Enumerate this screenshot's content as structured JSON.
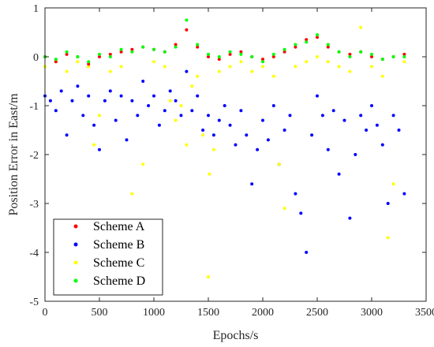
{
  "chart_data": {
    "type": "scatter",
    "xlabel": "Epochs/s",
    "ylabel": "Position Error in East/m",
    "xlim": [
      0,
      3500
    ],
    "ylim": [
      -5,
      1
    ],
    "xticks": [
      0,
      500,
      1000,
      1500,
      2000,
      2500,
      3000,
      3500
    ],
    "yticks": [
      -5,
      -4,
      -3,
      -2,
      -1,
      0,
      1
    ],
    "grid": false,
    "legend_position": "bottom-left",
    "series_colors": [
      "#ff0000",
      "#0000ff",
      "#ffff00",
      "#00ff00"
    ],
    "series": [
      {
        "name": "Scheme A",
        "x": [
          0,
          100,
          200,
          300,
          400,
          500,
          600,
          700,
          800,
          900,
          1000,
          1100,
          1200,
          1300,
          1400,
          1500,
          1600,
          1700,
          1800,
          1900,
          2000,
          2100,
          2200,
          2300,
          2400,
          2500,
          2600,
          2700,
          2800,
          2900,
          3000,
          3100,
          3200,
          3300
        ],
        "y": [
          0.0,
          -0.1,
          0.05,
          0.0,
          -0.15,
          0.0,
          0.05,
          0.1,
          0.15,
          0.2,
          0.15,
          0.1,
          0.25,
          0.55,
          0.2,
          0.0,
          -0.05,
          0.05,
          0.1,
          0.0,
          -0.05,
          0.0,
          0.1,
          0.2,
          0.35,
          0.4,
          0.2,
          0.1,
          0.05,
          0.1,
          0.0,
          -0.05,
          0.0,
          0.05
        ]
      },
      {
        "name": "Scheme B",
        "x": [
          0,
          50,
          100,
          150,
          200,
          250,
          300,
          350,
          400,
          450,
          500,
          550,
          600,
          650,
          700,
          750,
          800,
          850,
          900,
          950,
          1000,
          1050,
          1100,
          1150,
          1200,
          1250,
          1300,
          1350,
          1400,
          1450,
          1500,
          1550,
          1600,
          1650,
          1700,
          1750,
          1800,
          1850,
          1900,
          1950,
          2000,
          2050,
          2100,
          2150,
          2200,
          2250,
          2300,
          2350,
          2400,
          2450,
          2500,
          2550,
          2600,
          2650,
          2700,
          2750,
          2800,
          2850,
          2900,
          2950,
          3000,
          3050,
          3100,
          3150,
          3200,
          3250,
          3300
        ],
        "y": [
          -0.8,
          -0.9,
          -1.1,
          -0.7,
          -1.6,
          -0.9,
          -0.6,
          -1.2,
          -0.8,
          -1.4,
          -1.9,
          -0.9,
          -0.7,
          -1.3,
          -0.8,
          -1.7,
          -0.9,
          -1.2,
          -0.5,
          -1.0,
          -0.8,
          -1.4,
          -1.1,
          -0.7,
          -0.9,
          -1.2,
          -0.3,
          -1.1,
          -0.8,
          -1.5,
          -1.2,
          -1.6,
          -1.3,
          -1.0,
          -1.4,
          -1.8,
          -1.1,
          -1.6,
          -2.6,
          -1.9,
          -1.3,
          -1.7,
          -1.0,
          -2.2,
          -1.5,
          -1.2,
          -2.8,
          -3.2,
          -4.0,
          -1.6,
          -0.8,
          -1.2,
          -1.9,
          -1.1,
          -2.4,
          -1.3,
          -3.3,
          -2.0,
          -1.2,
          -1.5,
          -1.0,
          -1.4,
          -1.8,
          -3.0,
          -1.2,
          -1.5,
          -2.8
        ]
      },
      {
        "name": "Scheme C",
        "x": [
          0,
          100,
          200,
          300,
          400,
          450,
          500,
          600,
          700,
          800,
          900,
          1000,
          1100,
          1150,
          1200,
          1250,
          1300,
          1350,
          1400,
          1450,
          1500,
          1510,
          1550,
          1600,
          1700,
          1800,
          1900,
          2000,
          2100,
          2150,
          2200,
          2300,
          2400,
          2500,
          2600,
          2700,
          2800,
          2900,
          3000,
          3100,
          3150,
          3200,
          3300
        ],
        "y": [
          -0.2,
          -0.1,
          -0.3,
          -0.1,
          -0.2,
          -1.8,
          -1.2,
          -0.3,
          -0.2,
          -2.8,
          -2.2,
          -0.1,
          -0.2,
          -0.9,
          -1.3,
          -1.0,
          -1.8,
          -0.6,
          -0.4,
          -1.6,
          -4.5,
          -2.4,
          -1.9,
          -0.3,
          -0.2,
          -0.1,
          -0.3,
          -0.2,
          -0.4,
          -2.2,
          -3.1,
          -0.2,
          -0.1,
          0.0,
          -0.1,
          -0.2,
          -0.3,
          0.6,
          -0.2,
          -0.4,
          -3.7,
          -2.6,
          -0.1
        ]
      },
      {
        "name": "Scheme D",
        "x": [
          0,
          100,
          200,
          300,
          400,
          500,
          600,
          700,
          800,
          900,
          1000,
          1100,
          1200,
          1300,
          1400,
          1500,
          1600,
          1700,
          1800,
          1900,
          2000,
          2100,
          2200,
          2300,
          2400,
          2500,
          2600,
          2700,
          2800,
          2900,
          3000,
          3100,
          3200,
          3300
        ],
        "y": [
          0.0,
          -0.05,
          0.1,
          0.0,
          -0.1,
          0.05,
          0.0,
          0.15,
          0.1,
          0.2,
          0.15,
          0.1,
          0.2,
          0.75,
          0.25,
          0.05,
          0.0,
          0.1,
          0.05,
          0.0,
          -0.1,
          0.05,
          0.15,
          0.25,
          0.3,
          0.45,
          0.25,
          0.1,
          0.0,
          0.1,
          0.05,
          -0.05,
          0.0,
          0.0
        ]
      }
    ],
    "legend": [
      "Scheme A",
      "Scheme B",
      "Scheme C",
      "Scheme D"
    ]
  }
}
